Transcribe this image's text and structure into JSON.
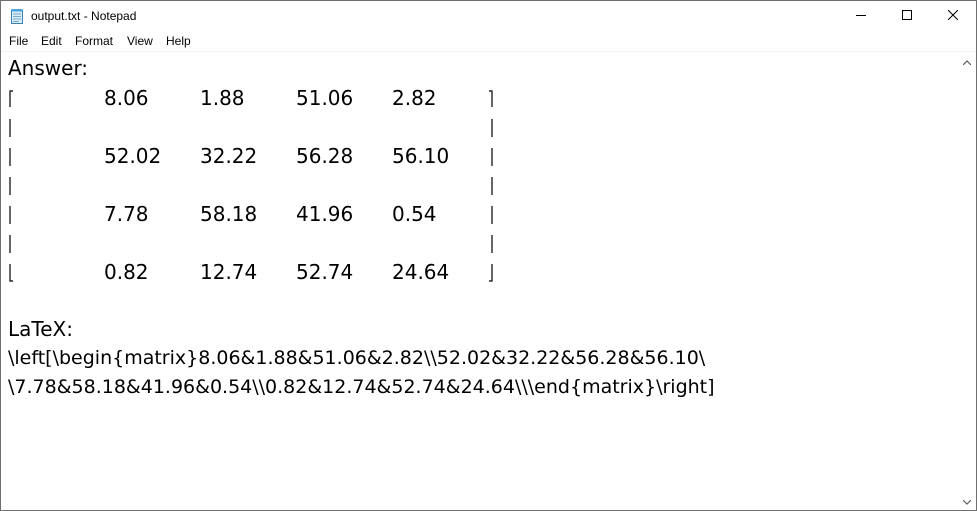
{
  "window": {
    "title": "output.txt - Notepad"
  },
  "menu": {
    "items": [
      "File",
      "Edit",
      "Format",
      "View",
      "Help"
    ]
  },
  "content": {
    "answer_label": "Answer:",
    "matrix": [
      [
        "8.06",
        "1.88",
        "51.06",
        "2.82"
      ],
      [
        "52.02",
        "32.22",
        "56.28",
        "56.10"
      ],
      [
        "7.78",
        "58.18",
        "41.96",
        "0.54"
      ],
      [
        "0.82",
        "12.74",
        "52.74",
        "24.64"
      ]
    ],
    "latex_label": "LaTeX:",
    "latex_line1": "\\left[\\begin{matrix}8.06&1.88&51.06&2.82\\\\52.02&32.22&56.28&56.10\\",
    "latex_line2": "\\7.78&58.18&41.96&0.54\\\\0.82&12.74&52.74&24.64\\\\\\end{matrix}\\right]"
  },
  "icons": {
    "app": "notepad-icon",
    "minimize": "minimize-icon",
    "maximize": "maximize-icon",
    "close": "close-icon",
    "scroll_up": "scroll-up-arrow-icon",
    "scroll_down": "scroll-down-arrow-icon"
  }
}
